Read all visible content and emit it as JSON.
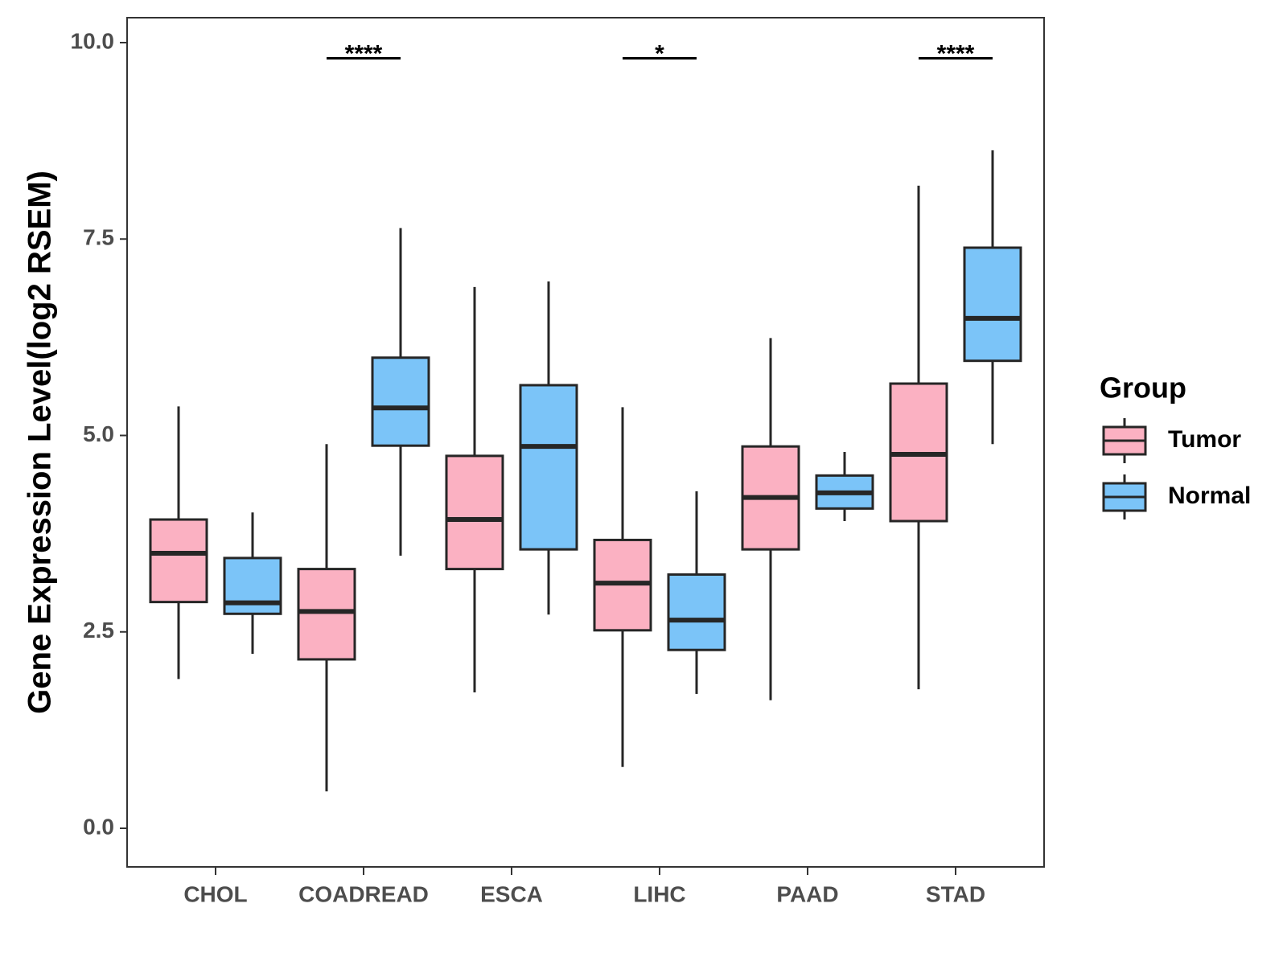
{
  "chart_data": {
    "type": "box",
    "title": "",
    "xlabel": "",
    "ylabel": "Gene Expression Level(log2 RSEM)",
    "ylim": [
      -0.5,
      10.3
    ],
    "yticks": [
      0.0,
      2.5,
      5.0,
      7.5,
      10.0
    ],
    "ytick_labels": [
      "0.0",
      "2.5",
      "5.0",
      "7.5",
      "10.0"
    ],
    "categories": [
      "CHOL",
      "COADREAD",
      "ESCA",
      "LIHC",
      "PAAD",
      "STAD"
    ],
    "legend": {
      "title": "Group",
      "position": "right",
      "entries": [
        {
          "name": "Tumor",
          "color": "#fbb1c2"
        },
        {
          "name": "Normal",
          "color": "#7bc4f8"
        }
      ]
    },
    "series": [
      {
        "name": "Tumor",
        "color": "#fbb1c2",
        "boxes": [
          {
            "category": "CHOL",
            "min": 1.9,
            "q1": 2.88,
            "median": 3.5,
            "q3": 3.93,
            "max": 5.37
          },
          {
            "category": "COADREAD",
            "min": 0.47,
            "q1": 2.15,
            "median": 2.76,
            "q3": 3.3,
            "max": 4.89
          },
          {
            "category": "ESCA",
            "min": 1.73,
            "q1": 3.3,
            "median": 3.93,
            "q3": 4.74,
            "max": 6.89
          },
          {
            "category": "LIHC",
            "min": 0.78,
            "q1": 2.52,
            "median": 3.12,
            "q3": 3.67,
            "max": 5.36
          },
          {
            "category": "PAAD",
            "min": 1.63,
            "q1": 3.55,
            "median": 4.21,
            "q3": 4.86,
            "max": 6.24
          },
          {
            "category": "STAD",
            "min": 1.77,
            "q1": 3.91,
            "median": 4.76,
            "q3": 5.66,
            "max": 8.18
          }
        ]
      },
      {
        "name": "Normal",
        "color": "#7bc4f8",
        "boxes": [
          {
            "category": "CHOL",
            "min": 2.22,
            "q1": 2.73,
            "median": 2.87,
            "q3": 3.44,
            "max": 4.02
          },
          {
            "category": "COADREAD",
            "min": 3.47,
            "q1": 4.87,
            "median": 5.35,
            "q3": 5.99,
            "max": 7.64
          },
          {
            "category": "ESCA",
            "min": 2.72,
            "q1": 3.55,
            "median": 4.86,
            "q3": 5.64,
            "max": 6.96
          },
          {
            "category": "LIHC",
            "min": 1.71,
            "q1": 2.27,
            "median": 2.65,
            "q3": 3.23,
            "max": 4.29
          },
          {
            "category": "PAAD",
            "min": 3.91,
            "q1": 4.07,
            "median": 4.27,
            "q3": 4.49,
            "max": 4.79
          },
          {
            "category": "STAD",
            "min": 4.89,
            "q1": 5.95,
            "median": 6.49,
            "q3": 7.39,
            "max": 8.63
          }
        ]
      }
    ],
    "significance": [
      {
        "category": "COADREAD",
        "label": "****"
      },
      {
        "category": "LIHC",
        "label": "*"
      },
      {
        "category": "STAD",
        "label": "****"
      }
    ]
  }
}
